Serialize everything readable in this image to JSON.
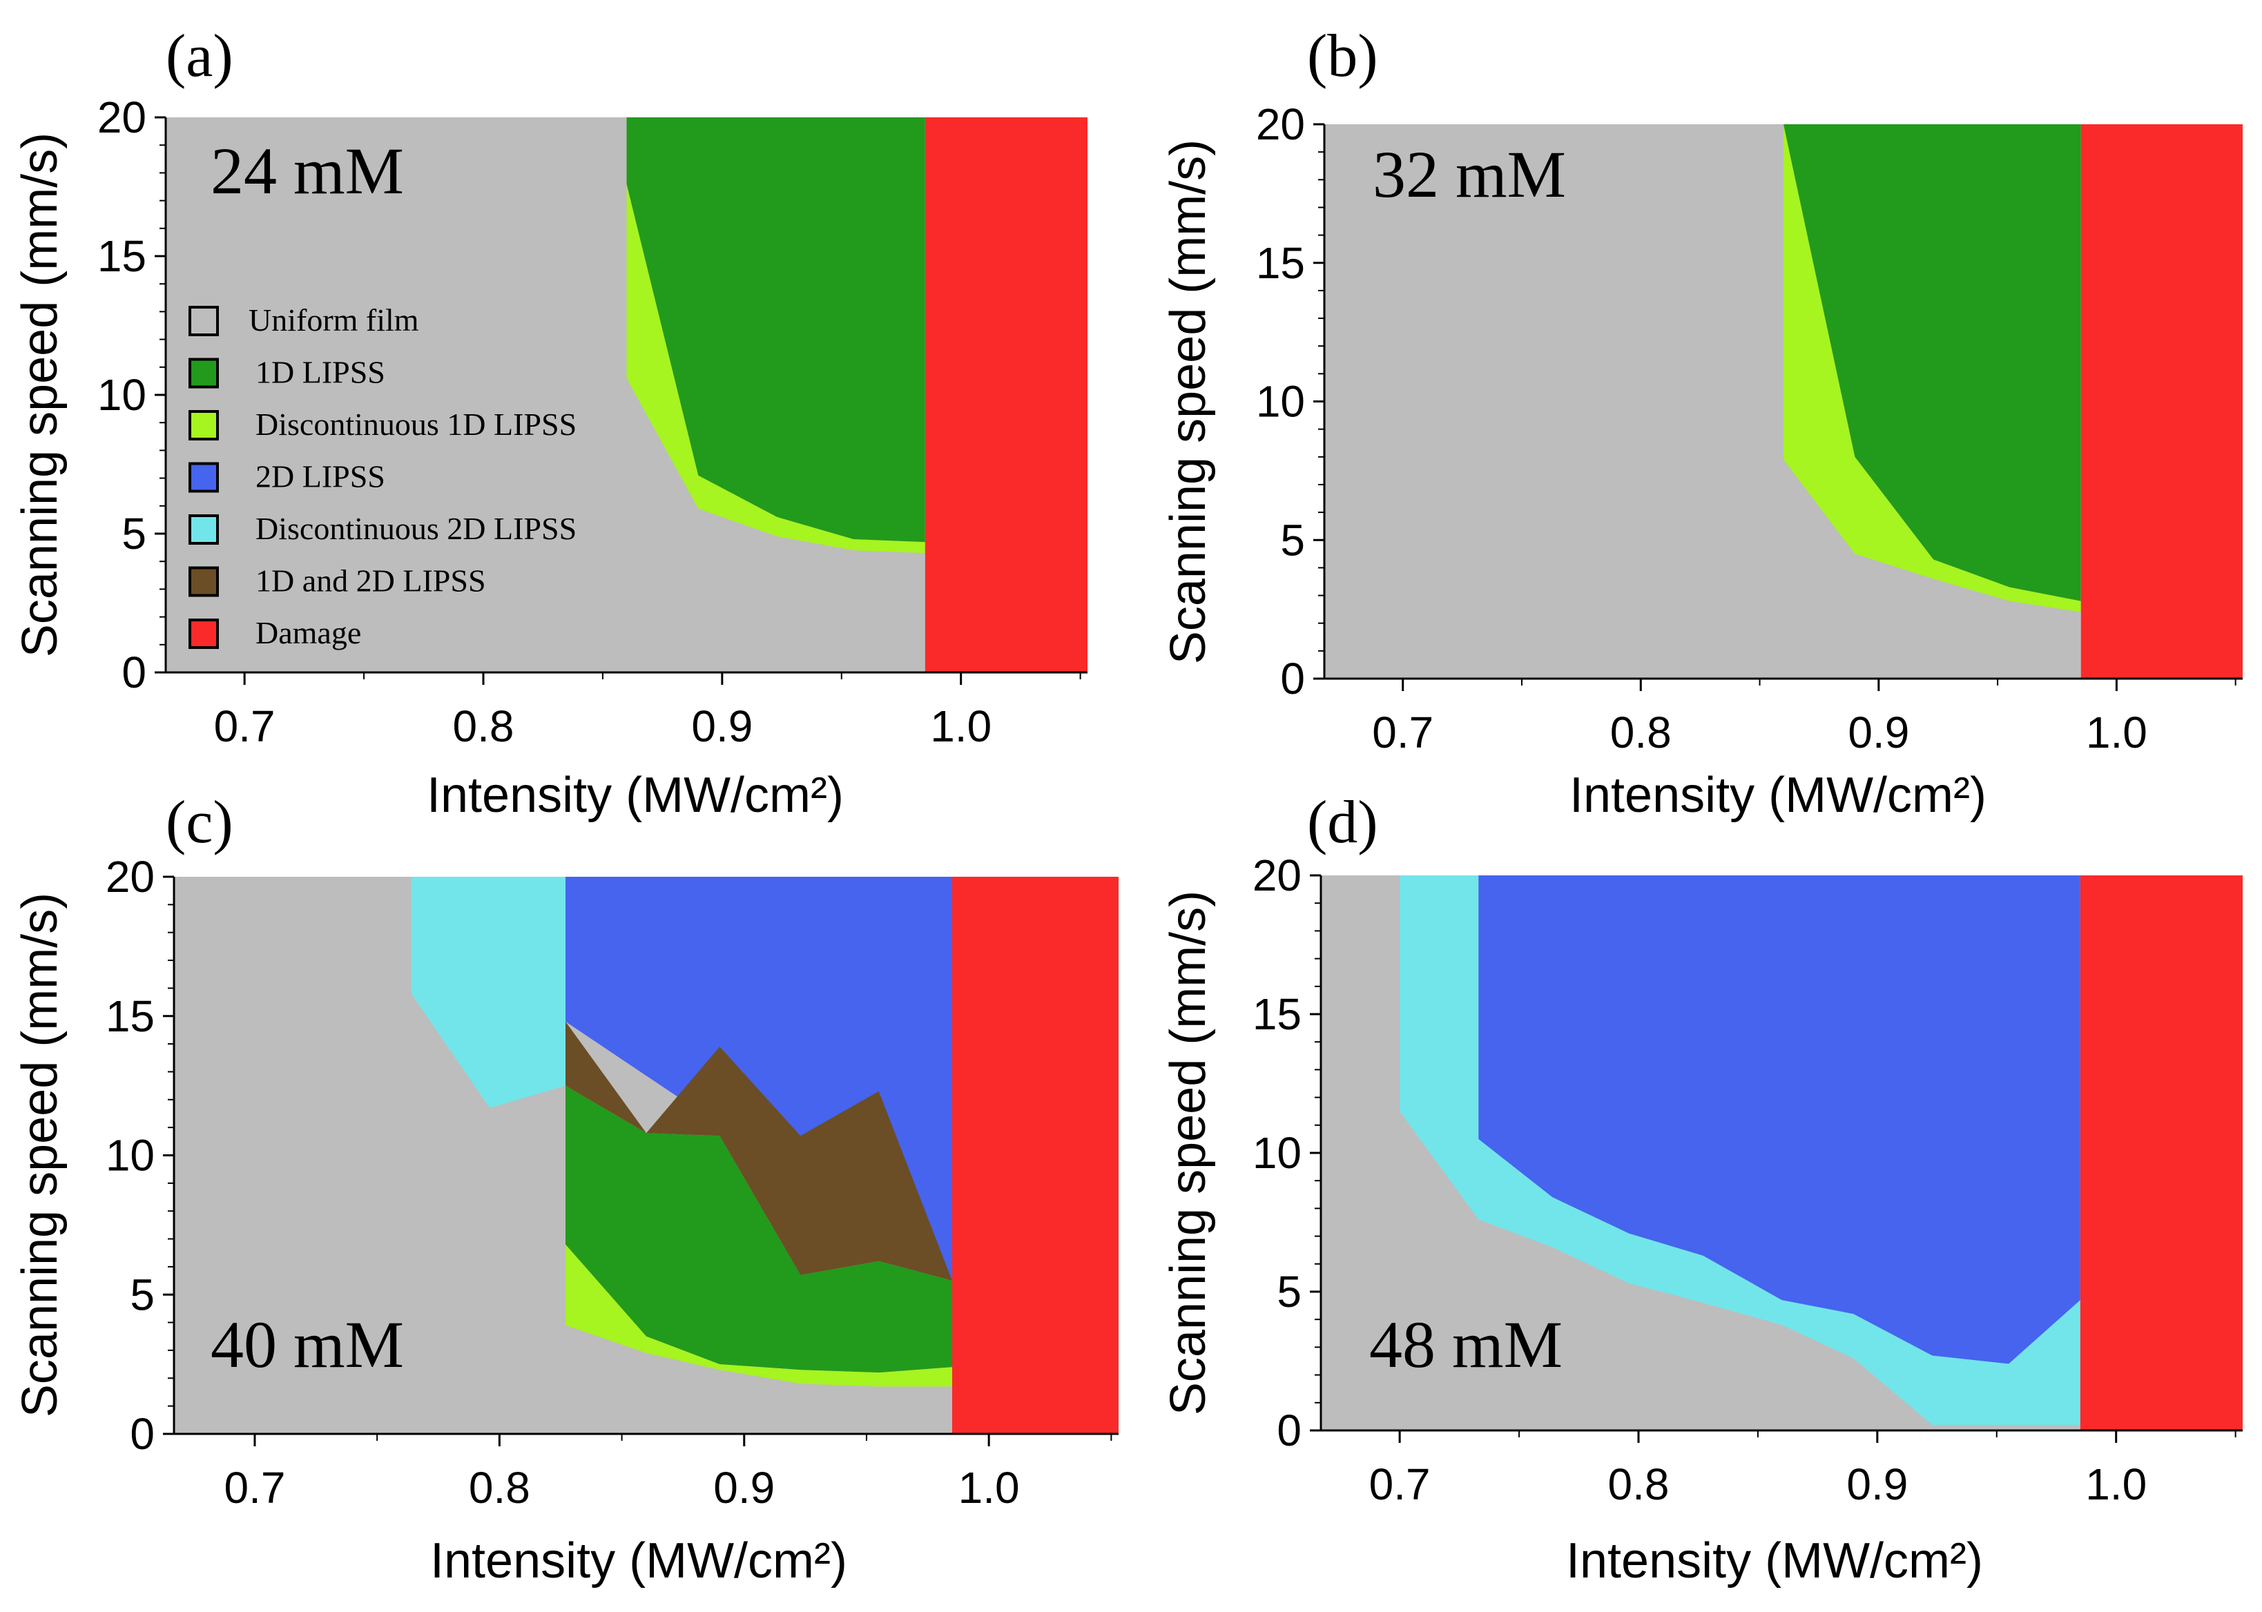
{
  "colors": {
    "uniform": "#bdbdbd",
    "oneD": "#229a1c",
    "disc1D": "#a6f420",
    "twoD": "#4664ee",
    "disc2D": "#72e5ea",
    "mixed": "#6b4e25",
    "damage": "#fb2a2a"
  },
  "legend": [
    {
      "key": "uniform",
      "label": "Uniform film"
    },
    {
      "key": "oneD",
      "label": "1D LIPSS"
    },
    {
      "key": "disc1D",
      "label": "Discontinuous 1D LIPSS"
    },
    {
      "key": "twoD",
      "label": "2D LIPSS"
    },
    {
      "key": "disc2D",
      "label": "Discontinuous 2D LIPSS"
    },
    {
      "key": "mixed",
      "label": "1D and 2D LIPSS"
    },
    {
      "key": "damage",
      "label": "Damage"
    }
  ],
  "chart_data": [
    {
      "type": "area",
      "panel": "(a)",
      "concentration": "24 mM",
      "xlabel": "Intensity (MW/cm²)",
      "ylabel": "Scanning speed (mm/s)",
      "xlim": [
        0.667,
        1.053
      ],
      "ylim": [
        0,
        20
      ],
      "xticks": [
        "0.7",
        "0.8",
        "0.9",
        "1.0"
      ],
      "yticks": [
        "0",
        "5",
        "10",
        "15",
        "20"
      ],
      "legend_position": "left",
      "regions": [
        {
          "class": "uniform",
          "points": [
            [
              0.667,
              0
            ],
            [
              0.985,
              0
            ],
            [
              0.985,
              20
            ],
            [
              0.667,
              20
            ]
          ]
        },
        {
          "class": "disc1D",
          "points": [
            [
              0.86,
              10.6
            ],
            [
              0.86,
              17.6
            ],
            [
              0.89,
              7.1
            ],
            [
              0.923,
              5.6
            ],
            [
              0.955,
              4.8
            ],
            [
              0.985,
              4.7
            ],
            [
              0.985,
              4.3
            ],
            [
              0.955,
              4.4
            ],
            [
              0.923,
              4.9
            ],
            [
              0.89,
              5.9
            ]
          ]
        },
        {
          "class": "oneD",
          "points": [
            [
              0.86,
              20
            ],
            [
              0.985,
              20
            ],
            [
              0.985,
              4.7
            ],
            [
              0.955,
              4.8
            ],
            [
              0.923,
              5.6
            ],
            [
              0.89,
              7.1
            ],
            [
              0.86,
              17.6
            ]
          ]
        },
        {
          "class": "damage",
          "points": [
            [
              0.985,
              0
            ],
            [
              1.053,
              0
            ],
            [
              1.053,
              20
            ],
            [
              0.985,
              20
            ]
          ]
        }
      ]
    },
    {
      "type": "area",
      "panel": "(b)",
      "concentration": "32 mM",
      "xlabel": "Intensity (MW/cm²)",
      "ylabel": "Scanning speed (mm/s)",
      "xlim": [
        0.667,
        1.053
      ],
      "ylim": [
        0,
        20
      ],
      "xticks": [
        "0.7",
        "0.8",
        "0.9",
        "1.0"
      ],
      "yticks": [
        "0",
        "5",
        "10",
        "15",
        "20"
      ],
      "regions": [
        {
          "class": "uniform",
          "points": [
            [
              0.667,
              0
            ],
            [
              0.985,
              0
            ],
            [
              0.985,
              20
            ],
            [
              0.667,
              20
            ]
          ]
        },
        {
          "class": "disc1D",
          "points": [
            [
              0.86,
              7.9
            ],
            [
              0.86,
              20
            ],
            [
              0.89,
              8.0
            ],
            [
              0.923,
              4.3
            ],
            [
              0.955,
              3.3
            ],
            [
              0.985,
              2.8
            ],
            [
              0.985,
              2.4
            ],
            [
              0.955,
              2.8
            ],
            [
              0.923,
              3.6
            ],
            [
              0.89,
              4.5
            ]
          ]
        },
        {
          "class": "oneD",
          "points": [
            [
              0.86,
              20
            ],
            [
              0.985,
              20
            ],
            [
              0.985,
              2.8
            ],
            [
              0.955,
              3.3
            ],
            [
              0.923,
              4.3
            ],
            [
              0.89,
              8.0
            ]
          ]
        },
        {
          "class": "damage",
          "points": [
            [
              0.985,
              0
            ],
            [
              1.053,
              0
            ],
            [
              1.053,
              20
            ],
            [
              0.985,
              20
            ]
          ]
        }
      ]
    },
    {
      "type": "area",
      "panel": "(c)",
      "concentration": "40 mM",
      "xlabel": "Intensity (MW/cm²)",
      "ylabel": "Scanning speed (mm/s)",
      "xlim": [
        0.667,
        1.053
      ],
      "ylim": [
        0,
        20
      ],
      "xticks": [
        "0.7",
        "0.8",
        "0.9",
        "1.0"
      ],
      "yticks": [
        "0",
        "5",
        "10",
        "15",
        "20"
      ],
      "regions": [
        {
          "class": "uniform",
          "points": [
            [
              0.667,
              0
            ],
            [
              0.985,
              0
            ],
            [
              0.985,
              20
            ],
            [
              0.667,
              20
            ]
          ]
        },
        {
          "class": "disc2D",
          "points": [
            [
              0.764,
              20
            ],
            [
              0.827,
              20
            ],
            [
              0.827,
              12.5
            ],
            [
              0.796,
              11.7
            ],
            [
              0.764,
              15.8
            ]
          ]
        },
        {
          "class": "twoD",
          "points": [
            [
              0.827,
              20
            ],
            [
              0.985,
              20
            ],
            [
              0.985,
              5.5
            ],
            [
              0.827,
              14.8
            ]
          ]
        },
        {
          "class": "mixed",
          "points": [
            [
              0.827,
              14.8
            ],
            [
              0.86,
              10.8
            ],
            [
              0.89,
              13.9
            ],
            [
              0.923,
              10.7
            ],
            [
              0.955,
              12.3
            ],
            [
              0.985,
              5.5
            ],
            [
              0.985,
              5.5
            ],
            [
              0.955,
              6.2
            ],
            [
              0.923,
              5.7
            ],
            [
              0.89,
              10.7
            ],
            [
              0.86,
              10.8
            ],
            [
              0.827,
              12.5
            ]
          ]
        },
        {
          "class": "oneD",
          "points": [
            [
              0.827,
              12.5
            ],
            [
              0.86,
              10.8
            ],
            [
              0.89,
              10.7
            ],
            [
              0.923,
              5.7
            ],
            [
              0.955,
              6.2
            ],
            [
              0.985,
              5.5
            ],
            [
              0.985,
              2.4
            ],
            [
              0.955,
              2.2
            ],
            [
              0.923,
              2.3
            ],
            [
              0.89,
              2.5
            ],
            [
              0.86,
              3.5
            ],
            [
              0.827,
              6.8
            ]
          ]
        },
        {
          "class": "disc1D",
          "points": [
            [
              0.827,
              6.8
            ],
            [
              0.86,
              3.5
            ],
            [
              0.89,
              2.5
            ],
            [
              0.923,
              2.3
            ],
            [
              0.955,
              2.2
            ],
            [
              0.985,
              2.4
            ],
            [
              0.985,
              1.7
            ],
            [
              0.955,
              1.7
            ],
            [
              0.923,
              1.8
            ],
            [
              0.89,
              2.3
            ],
            [
              0.86,
              2.9
            ],
            [
              0.827,
              3.9
            ]
          ]
        },
        {
          "class": "damage",
          "points": [
            [
              0.985,
              0
            ],
            [
              1.053,
              0
            ],
            [
              1.053,
              20
            ],
            [
              0.985,
              20
            ]
          ]
        }
      ]
    },
    {
      "type": "area",
      "panel": "(d)",
      "concentration": "48 mM",
      "xlabel": "Intensity (MW/cm²)",
      "ylabel": "Scanning speed (mm/s)",
      "xlim": [
        0.667,
        1.053
      ],
      "ylim": [
        0,
        20
      ],
      "xticks": [
        "0.7",
        "0.8",
        "0.9",
        "1.0"
      ],
      "yticks": [
        "0",
        "5",
        "10",
        "15",
        "20"
      ],
      "regions": [
        {
          "class": "uniform",
          "points": [
            [
              0.667,
              0
            ],
            [
              0.985,
              0
            ],
            [
              0.985,
              20
            ],
            [
              0.667,
              20
            ]
          ]
        },
        {
          "class": "disc2D",
          "points": [
            [
              0.7,
              20
            ],
            [
              0.985,
              20
            ],
            [
              0.985,
              0.2
            ],
            [
              0.923,
              0.2
            ],
            [
              0.89,
              2.6
            ],
            [
              0.86,
              3.8
            ],
            [
              0.827,
              4.6
            ],
            [
              0.796,
              5.3
            ],
            [
              0.764,
              6.6
            ],
            [
              0.733,
              7.6
            ],
            [
              0.7,
              11.5
            ]
          ]
        },
        {
          "class": "twoD",
          "points": [
            [
              0.733,
              20
            ],
            [
              0.985,
              20
            ],
            [
              0.985,
              4.7
            ],
            [
              0.955,
              2.4
            ],
            [
              0.923,
              2.7
            ],
            [
              0.89,
              4.2
            ],
            [
              0.86,
              4.7
            ],
            [
              0.827,
              6.3
            ],
            [
              0.796,
              7.1
            ],
            [
              0.764,
              8.4
            ],
            [
              0.733,
              10.5
            ]
          ]
        },
        {
          "class": "damage",
          "points": [
            [
              0.985,
              0
            ],
            [
              1.053,
              0
            ],
            [
              1.053,
              20
            ],
            [
              0.985,
              20
            ]
          ]
        }
      ]
    }
  ]
}
